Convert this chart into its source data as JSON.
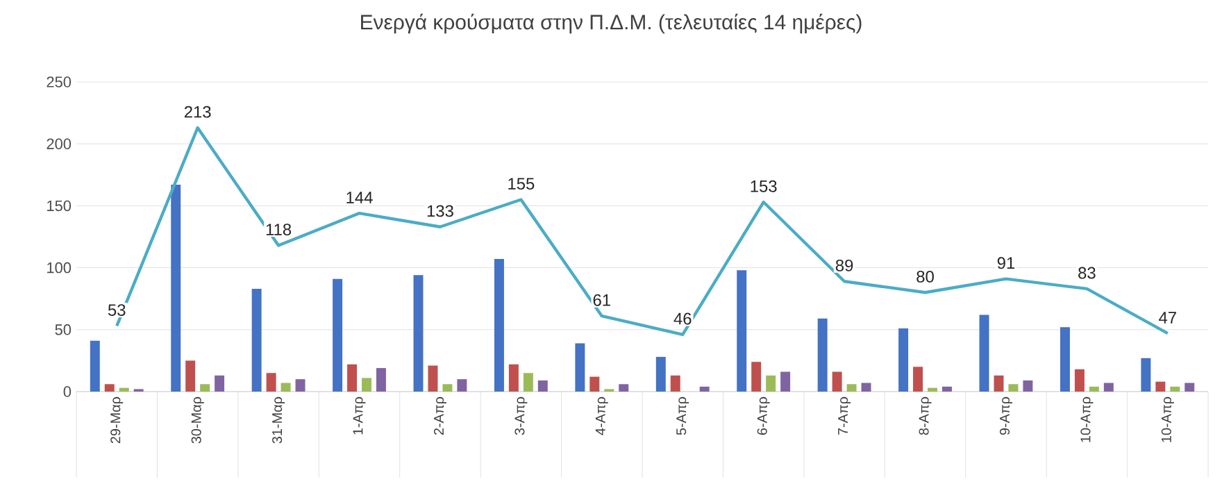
{
  "chart_data": {
    "type": "bar",
    "title": "Ενεργά κρούσματα στην Π.Δ.Μ. (τελευταίες 14 ημέρες)",
    "categories": [
      "29-Μαρ",
      "30-Μαρ",
      "31-Μαρ",
      "1-Απρ",
      "2-Απρ",
      "3-Απρ",
      "4-Απρ",
      "5-Απρ",
      "6-Απρ",
      "7-Απρ",
      "8-Απρ",
      "9-Απρ",
      "10-Απρ",
      "10-Απρ"
    ],
    "series": [
      {
        "color": "#4472c4",
        "values": [
          41,
          167,
          83,
          91,
          94,
          107,
          39,
          28,
          98,
          59,
          51,
          62,
          52,
          27
        ]
      },
      {
        "type": "bar",
        "color": "#c0504d",
        "values": [
          6,
          25,
          15,
          22,
          21,
          22,
          12,
          13,
          24,
          16,
          20,
          13,
          18,
          8
        ]
      },
      {
        "type": "bar",
        "color": "#9bbb59",
        "values": [
          3,
          6,
          7,
          11,
          6,
          15,
          2,
          0,
          13,
          6,
          3,
          6,
          4,
          4
        ]
      },
      {
        "type": "bar",
        "color": "#8064a2",
        "values": [
          2,
          13,
          10,
          19,
          10,
          9,
          6,
          4,
          16,
          7,
          4,
          9,
          7,
          7
        ]
      },
      {
        "type": "line",
        "color": "#4bacc6",
        "values": [
          53,
          213,
          118,
          144,
          133,
          155,
          61,
          46,
          153,
          89,
          80,
          91,
          83,
          47
        ],
        "value_labels": [
          "53",
          "213",
          "118",
          "144",
          "133",
          "155",
          "61",
          "46",
          "153",
          "89",
          "80",
          "91",
          "83",
          "47"
        ]
      }
    ],
    "ylim": [
      0,
      250
    ],
    "yticks": [
      0,
      50,
      100,
      150,
      200,
      250
    ],
    "grid": "y"
  }
}
